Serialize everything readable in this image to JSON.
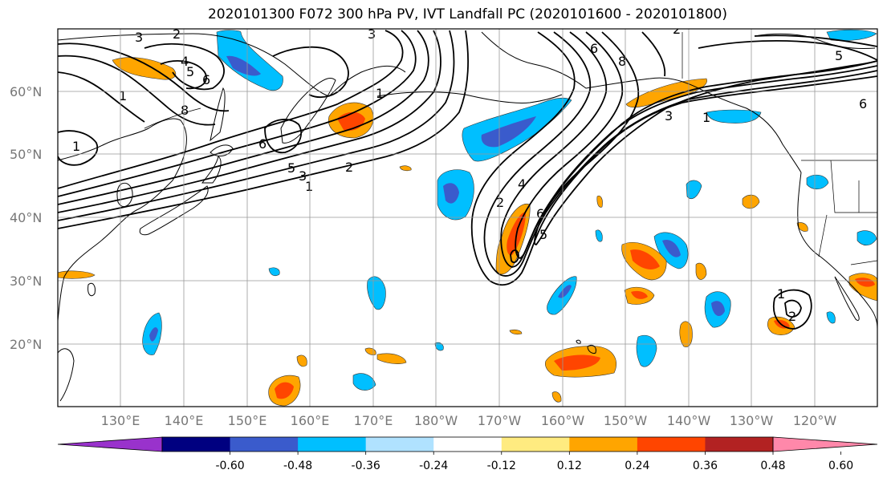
{
  "title": "2020101300 F072 300 hPa PV, IVT Landfall PC (2020101600 - 2020101800)",
  "lat_labels": [
    "60°N",
    "50°N",
    "40°N",
    "30°N",
    "20°N"
  ],
  "lon_labels": [
    "130°E",
    "140°E",
    "150°E",
    "160°E",
    "170°E",
    "180°W",
    "170°W",
    "160°W",
    "150°W",
    "140°W",
    "130°W",
    "120°W"
  ],
  "colorbar": {
    "labels": [
      "-0.60",
      "-0.48",
      "-0.36",
      "-0.24",
      "-0.12",
      "0.12",
      "0.24",
      "0.36",
      "0.48",
      "0.60"
    ],
    "colors": [
      "#9932cc",
      "#000080",
      "#3a5bcc",
      "#00bfff",
      "#b0e2ff",
      "#ffffff",
      "#ffeb80",
      "#ffa500",
      "#ff4500",
      "#b22222",
      "#ff88aa"
    ]
  },
  "contour_labels": [
    "3",
    "2",
    "4",
    "5",
    "6",
    "8",
    "1",
    "6",
    "5",
    "3",
    "1",
    "2",
    "2",
    "4",
    "5",
    "6",
    "3",
    "1",
    "2",
    "6",
    "8",
    "3",
    "1",
    "5",
    "6",
    "1",
    "2",
    "1"
  ]
}
